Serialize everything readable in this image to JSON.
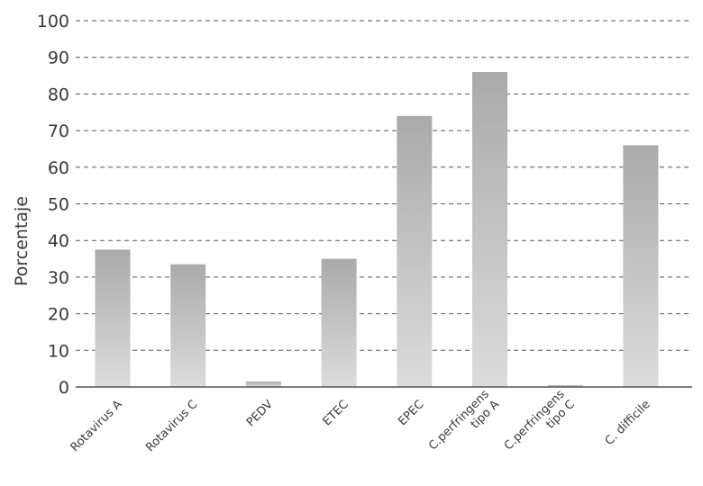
{
  "chart_data": {
    "type": "bar",
    "title": "",
    "xlabel": "",
    "ylabel": "Porcentaje",
    "ylim": [
      0,
      100
    ],
    "yticks": [
      0,
      10,
      20,
      30,
      40,
      50,
      60,
      70,
      80,
      90,
      100
    ],
    "grid": true,
    "categories": [
      [
        "Rotavirus A"
      ],
      [
        "Rotavirus C"
      ],
      [
        "PEDV"
      ],
      [
        "ETEC"
      ],
      [
        "EPEC"
      ],
      [
        "C.perfringens",
        "tipo A"
      ],
      [
        "C.perfringens",
        "tipo C"
      ],
      [
        "C. difficile"
      ]
    ],
    "values": [
      37.5,
      33.5,
      1.5,
      35,
      74,
      86,
      0.5,
      66
    ],
    "colors": {
      "bar_top": "#aaaaaa",
      "bar_bottom": "#dcdcdc",
      "grid": "#555555",
      "axis": "#555555",
      "text": "#3a3a3a"
    }
  }
}
